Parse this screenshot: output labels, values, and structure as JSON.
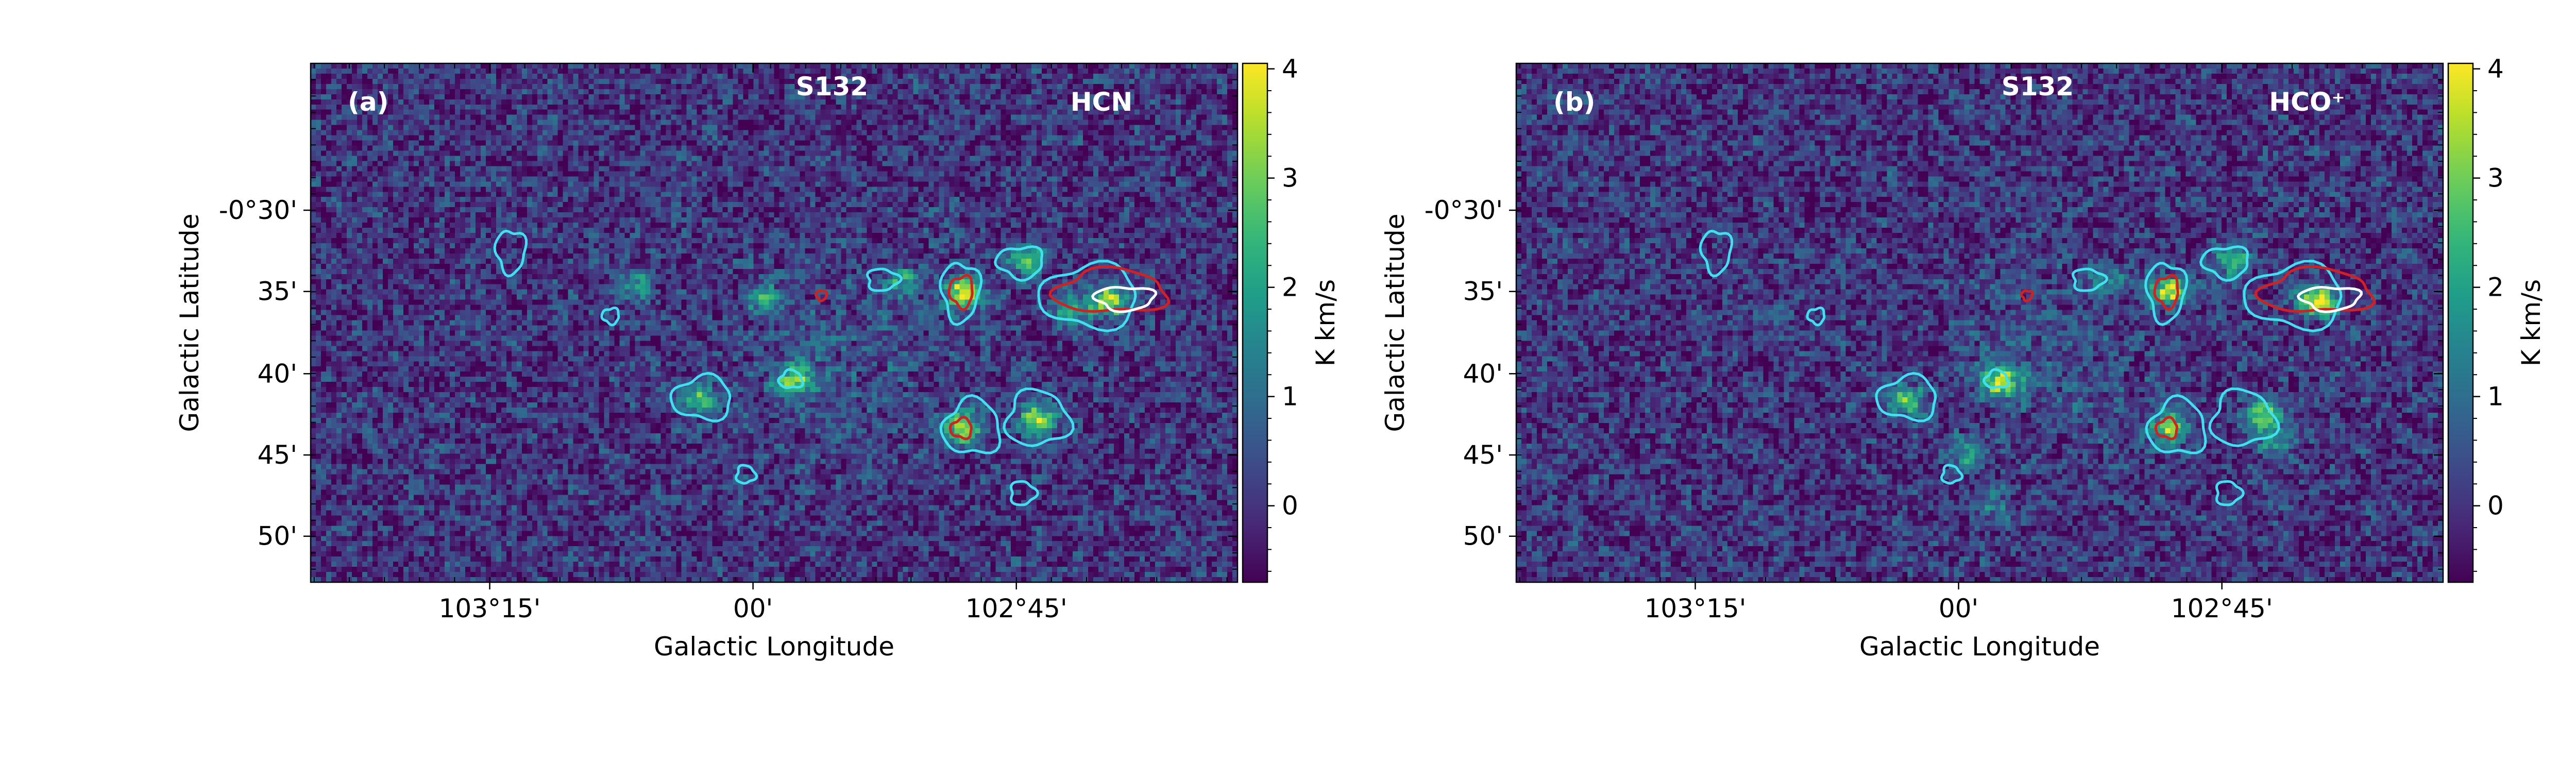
{
  "figure_bg": "#ffffff",
  "colormap": "viridis",
  "chart_data": [
    {
      "type": "heatmap",
      "panel_label": "(a)",
      "region_label": "S132",
      "tracer_label": "HCN",
      "xlabel": "Galactic Longitude",
      "ylabel": "Galactic Latitude",
      "xlim_deg": [
        103.42,
        102.54
      ],
      "ylim_deg": [
        -0.88,
        -0.35
      ],
      "xticks": [
        {
          "value": 103.25,
          "label": "103°15'"
        },
        {
          "value": 103.0,
          "label": "00'"
        },
        {
          "value": 102.75,
          "label": "102°45'"
        }
      ],
      "yticks": [
        {
          "value": -0.5,
          "label": "-0°30'"
        },
        {
          "value": -0.583,
          "label": "35'"
        },
        {
          "value": -0.667,
          "label": "40'"
        },
        {
          "value": -0.75,
          "label": "45'"
        },
        {
          "value": -0.833,
          "label": "50'"
        }
      ],
      "colorbar": {
        "label": "K km/s",
        "range": [
          -0.7,
          4.05
        ],
        "ticks": [
          {
            "value": 0,
            "label": "0"
          },
          {
            "value": 1,
            "label": "1"
          },
          {
            "value": 2,
            "label": "2"
          },
          {
            "value": 3,
            "label": "3"
          },
          {
            "value": 4,
            "label": "4"
          }
        ]
      },
      "emission_peaks": [
        {
          "l": 102.8,
          "b": -0.583,
          "peak": 3.8
        },
        {
          "l": 102.8,
          "b": -0.722,
          "peak": 3.6
        },
        {
          "l": 102.73,
          "b": -0.713,
          "peak": 3.3
        },
        {
          "l": 102.66,
          "b": -0.593,
          "peak": 3.6
        },
        {
          "l": 102.96,
          "b": -0.674,
          "peak": 3.0
        },
        {
          "l": 103.05,
          "b": -0.693,
          "peak": 2.6
        },
        {
          "l": 102.74,
          "b": -0.552,
          "peak": 2.8
        },
        {
          "l": 102.86,
          "b": -0.572,
          "peak": 1.8
        },
        {
          "l": 102.99,
          "b": -0.589,
          "peak": 1.7
        },
        {
          "l": 102.7,
          "b": -0.603,
          "peak": 2.2
        },
        {
          "l": 103.11,
          "b": -0.575,
          "peak": 1.5
        }
      ],
      "contours": {
        "cyan": [
          {
            "l": 103.23,
            "b": -0.542,
            "rl": 0.014,
            "rb": 0.022
          },
          {
            "l": 103.135,
            "b": -0.608,
            "rl": 0.008,
            "rb": 0.008
          },
          {
            "l": 103.048,
            "b": -0.692,
            "rl": 0.028,
            "rb": 0.022
          },
          {
            "l": 102.964,
            "b": -0.673,
            "rl": 0.011,
            "rb": 0.009
          },
          {
            "l": 103.007,
            "b": -0.77,
            "rl": 0.009,
            "rb": 0.009
          },
          {
            "l": 102.877,
            "b": -0.571,
            "rl": 0.015,
            "rb": 0.011
          },
          {
            "l": 102.803,
            "b": -0.583,
            "rl": 0.018,
            "rb": 0.03
          },
          {
            "l": 102.746,
            "b": -0.553,
            "rl": 0.022,
            "rb": 0.016
          },
          {
            "l": 102.68,
            "b": -0.588,
            "rl": 0.046,
            "rb": 0.032
          },
          {
            "l": 102.792,
            "b": -0.722,
            "rl": 0.027,
            "rb": 0.028
          },
          {
            "l": 102.73,
            "b": -0.713,
            "rl": 0.03,
            "rb": 0.028
          },
          {
            "l": 102.744,
            "b": -0.789,
            "rl": 0.012,
            "rb": 0.012
          }
        ],
        "red": [
          {
            "l": 102.935,
            "b": -0.587,
            "rl": 0.005,
            "rb": 0.005
          },
          {
            "l": 102.802,
            "b": -0.583,
            "rl": 0.011,
            "rb": 0.016
          },
          {
            "l": 102.802,
            "b": -0.723,
            "rl": 0.01,
            "rb": 0.01
          },
          {
            "l": 102.66,
            "b": -0.583,
            "rl": 0.053,
            "rb": 0.022
          }
        ],
        "white": [
          {
            "l": 102.647,
            "b": -0.59,
            "rl": 0.028,
            "rb": 0.012
          }
        ]
      }
    },
    {
      "type": "heatmap",
      "panel_label": "(b)",
      "region_label": "S132",
      "tracer_label": "HCO⁺",
      "xlabel": "Galactic Longitude",
      "ylabel": "Galactic Latitude",
      "xlim_deg": [
        103.42,
        102.54
      ],
      "ylim_deg": [
        -0.88,
        -0.35
      ],
      "xticks": [
        {
          "value": 103.25,
          "label": "103°15'"
        },
        {
          "value": 103.0,
          "label": "00'"
        },
        {
          "value": 102.75,
          "label": "102°45'"
        }
      ],
      "yticks": [
        {
          "value": -0.5,
          "label": "-0°30'"
        },
        {
          "value": -0.583,
          "label": "35'"
        },
        {
          "value": -0.667,
          "label": "40'"
        },
        {
          "value": -0.75,
          "label": "45'"
        },
        {
          "value": -0.833,
          "label": "50'"
        }
      ],
      "colorbar": {
        "label": "K km/s",
        "range": [
          -0.7,
          4.05
        ],
        "ticks": [
          {
            "value": 0,
            "label": "0"
          },
          {
            "value": 1,
            "label": "1"
          },
          {
            "value": 2,
            "label": "2"
          },
          {
            "value": 3,
            "label": "3"
          },
          {
            "value": 4,
            "label": "4"
          }
        ]
      },
      "emission_peaks": [
        {
          "l": 102.8,
          "b": -0.583,
          "peak": 3.7
        },
        {
          "l": 102.8,
          "b": -0.722,
          "peak": 3.2
        },
        {
          "l": 102.71,
          "b": -0.707,
          "peak": 3.2
        },
        {
          "l": 102.66,
          "b": -0.593,
          "peak": 3.9
        },
        {
          "l": 102.96,
          "b": -0.674,
          "peak": 3.4
        },
        {
          "l": 103.05,
          "b": -0.693,
          "peak": 2.4
        },
        {
          "l": 102.74,
          "b": -0.552,
          "peak": 2.4
        },
        {
          "l": 102.99,
          "b": -0.75,
          "peak": 1.6
        },
        {
          "l": 102.97,
          "b": -0.8,
          "peak": 1.5
        },
        {
          "l": 102.86,
          "b": -0.572,
          "peak": 1.5
        },
        {
          "l": 102.7,
          "b": -0.735,
          "peak": 1.6
        }
      ],
      "contours": {
        "cyan": [
          {
            "l": 103.23,
            "b": -0.542,
            "rl": 0.014,
            "rb": 0.022
          },
          {
            "l": 103.135,
            "b": -0.608,
            "rl": 0.008,
            "rb": 0.008
          },
          {
            "l": 103.048,
            "b": -0.692,
            "rl": 0.028,
            "rb": 0.022
          },
          {
            "l": 102.964,
            "b": -0.673,
            "rl": 0.011,
            "rb": 0.009
          },
          {
            "l": 103.007,
            "b": -0.77,
            "rl": 0.009,
            "rb": 0.009
          },
          {
            "l": 102.877,
            "b": -0.571,
            "rl": 0.015,
            "rb": 0.011
          },
          {
            "l": 102.803,
            "b": -0.583,
            "rl": 0.018,
            "rb": 0.03
          },
          {
            "l": 102.746,
            "b": -0.553,
            "rl": 0.022,
            "rb": 0.016
          },
          {
            "l": 102.68,
            "b": -0.588,
            "rl": 0.046,
            "rb": 0.032
          },
          {
            "l": 102.792,
            "b": -0.722,
            "rl": 0.027,
            "rb": 0.028
          },
          {
            "l": 102.73,
            "b": -0.713,
            "rl": 0.03,
            "rb": 0.028
          },
          {
            "l": 102.744,
            "b": -0.789,
            "rl": 0.012,
            "rb": 0.012
          }
        ],
        "red": [
          {
            "l": 102.935,
            "b": -0.587,
            "rl": 0.005,
            "rb": 0.005
          },
          {
            "l": 102.802,
            "b": -0.583,
            "rl": 0.011,
            "rb": 0.016
          },
          {
            "l": 102.802,
            "b": -0.723,
            "rl": 0.01,
            "rb": 0.01
          },
          {
            "l": 102.66,
            "b": -0.583,
            "rl": 0.053,
            "rb": 0.022
          }
        ],
        "white": [
          {
            "l": 102.647,
            "b": -0.59,
            "rl": 0.028,
            "rb": 0.012
          }
        ]
      }
    }
  ]
}
